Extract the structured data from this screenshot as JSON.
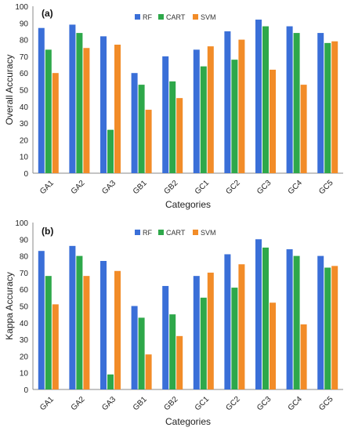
{
  "chart_data": [
    {
      "type": "bar",
      "panel_label": "(a)",
      "ylabel": "Overall Accuracy",
      "xlabel": "Categories",
      "ylim": [
        0,
        100
      ],
      "yticks": [
        0,
        10,
        20,
        30,
        40,
        50,
        60,
        70,
        80,
        90,
        100
      ],
      "legend_position": "top-center",
      "categories": [
        "GA1",
        "GA2",
        "GA3",
        "GB1",
        "GB2",
        "GC1",
        "GC2",
        "GC3",
        "GC4",
        "GC5"
      ],
      "series": [
        {
          "name": "RF",
          "color": "#3a6fd8",
          "values": [
            87,
            89,
            82,
            60,
            70,
            74,
            85,
            92,
            88,
            84
          ]
        },
        {
          "name": "CART",
          "color": "#2ea84a",
          "values": [
            74,
            84,
            26,
            53,
            55,
            64,
            68,
            88,
            84,
            78
          ]
        },
        {
          "name": "SVM",
          "color": "#f28c28",
          "values": [
            60,
            75,
            77,
            38,
            45,
            76,
            80,
            62,
            53,
            79
          ]
        }
      ]
    },
    {
      "type": "bar",
      "panel_label": "(b)",
      "ylabel": "Kappa Accuracy",
      "xlabel": "Categories",
      "ylim": [
        0,
        100
      ],
      "yticks": [
        0,
        10,
        20,
        30,
        40,
        50,
        60,
        70,
        80,
        90,
        100
      ],
      "legend_position": "top-center",
      "categories": [
        "GA1",
        "GA2",
        "GA3",
        "GB1",
        "GB2",
        "GC1",
        "GC2",
        "GC3",
        "GC4",
        "GC5"
      ],
      "series": [
        {
          "name": "RF",
          "color": "#3a6fd8",
          "values": [
            83,
            86,
            77,
            50,
            62,
            68,
            81,
            90,
            84,
            80
          ]
        },
        {
          "name": "CART",
          "color": "#2ea84a",
          "values": [
            68,
            80,
            9,
            43,
            45,
            55,
            61,
            85,
            80,
            73
          ]
        },
        {
          "name": "SVM",
          "color": "#f28c28",
          "values": [
            51,
            68,
            71,
            21,
            32,
            70,
            75,
            52,
            39,
            74
          ]
        }
      ]
    }
  ]
}
